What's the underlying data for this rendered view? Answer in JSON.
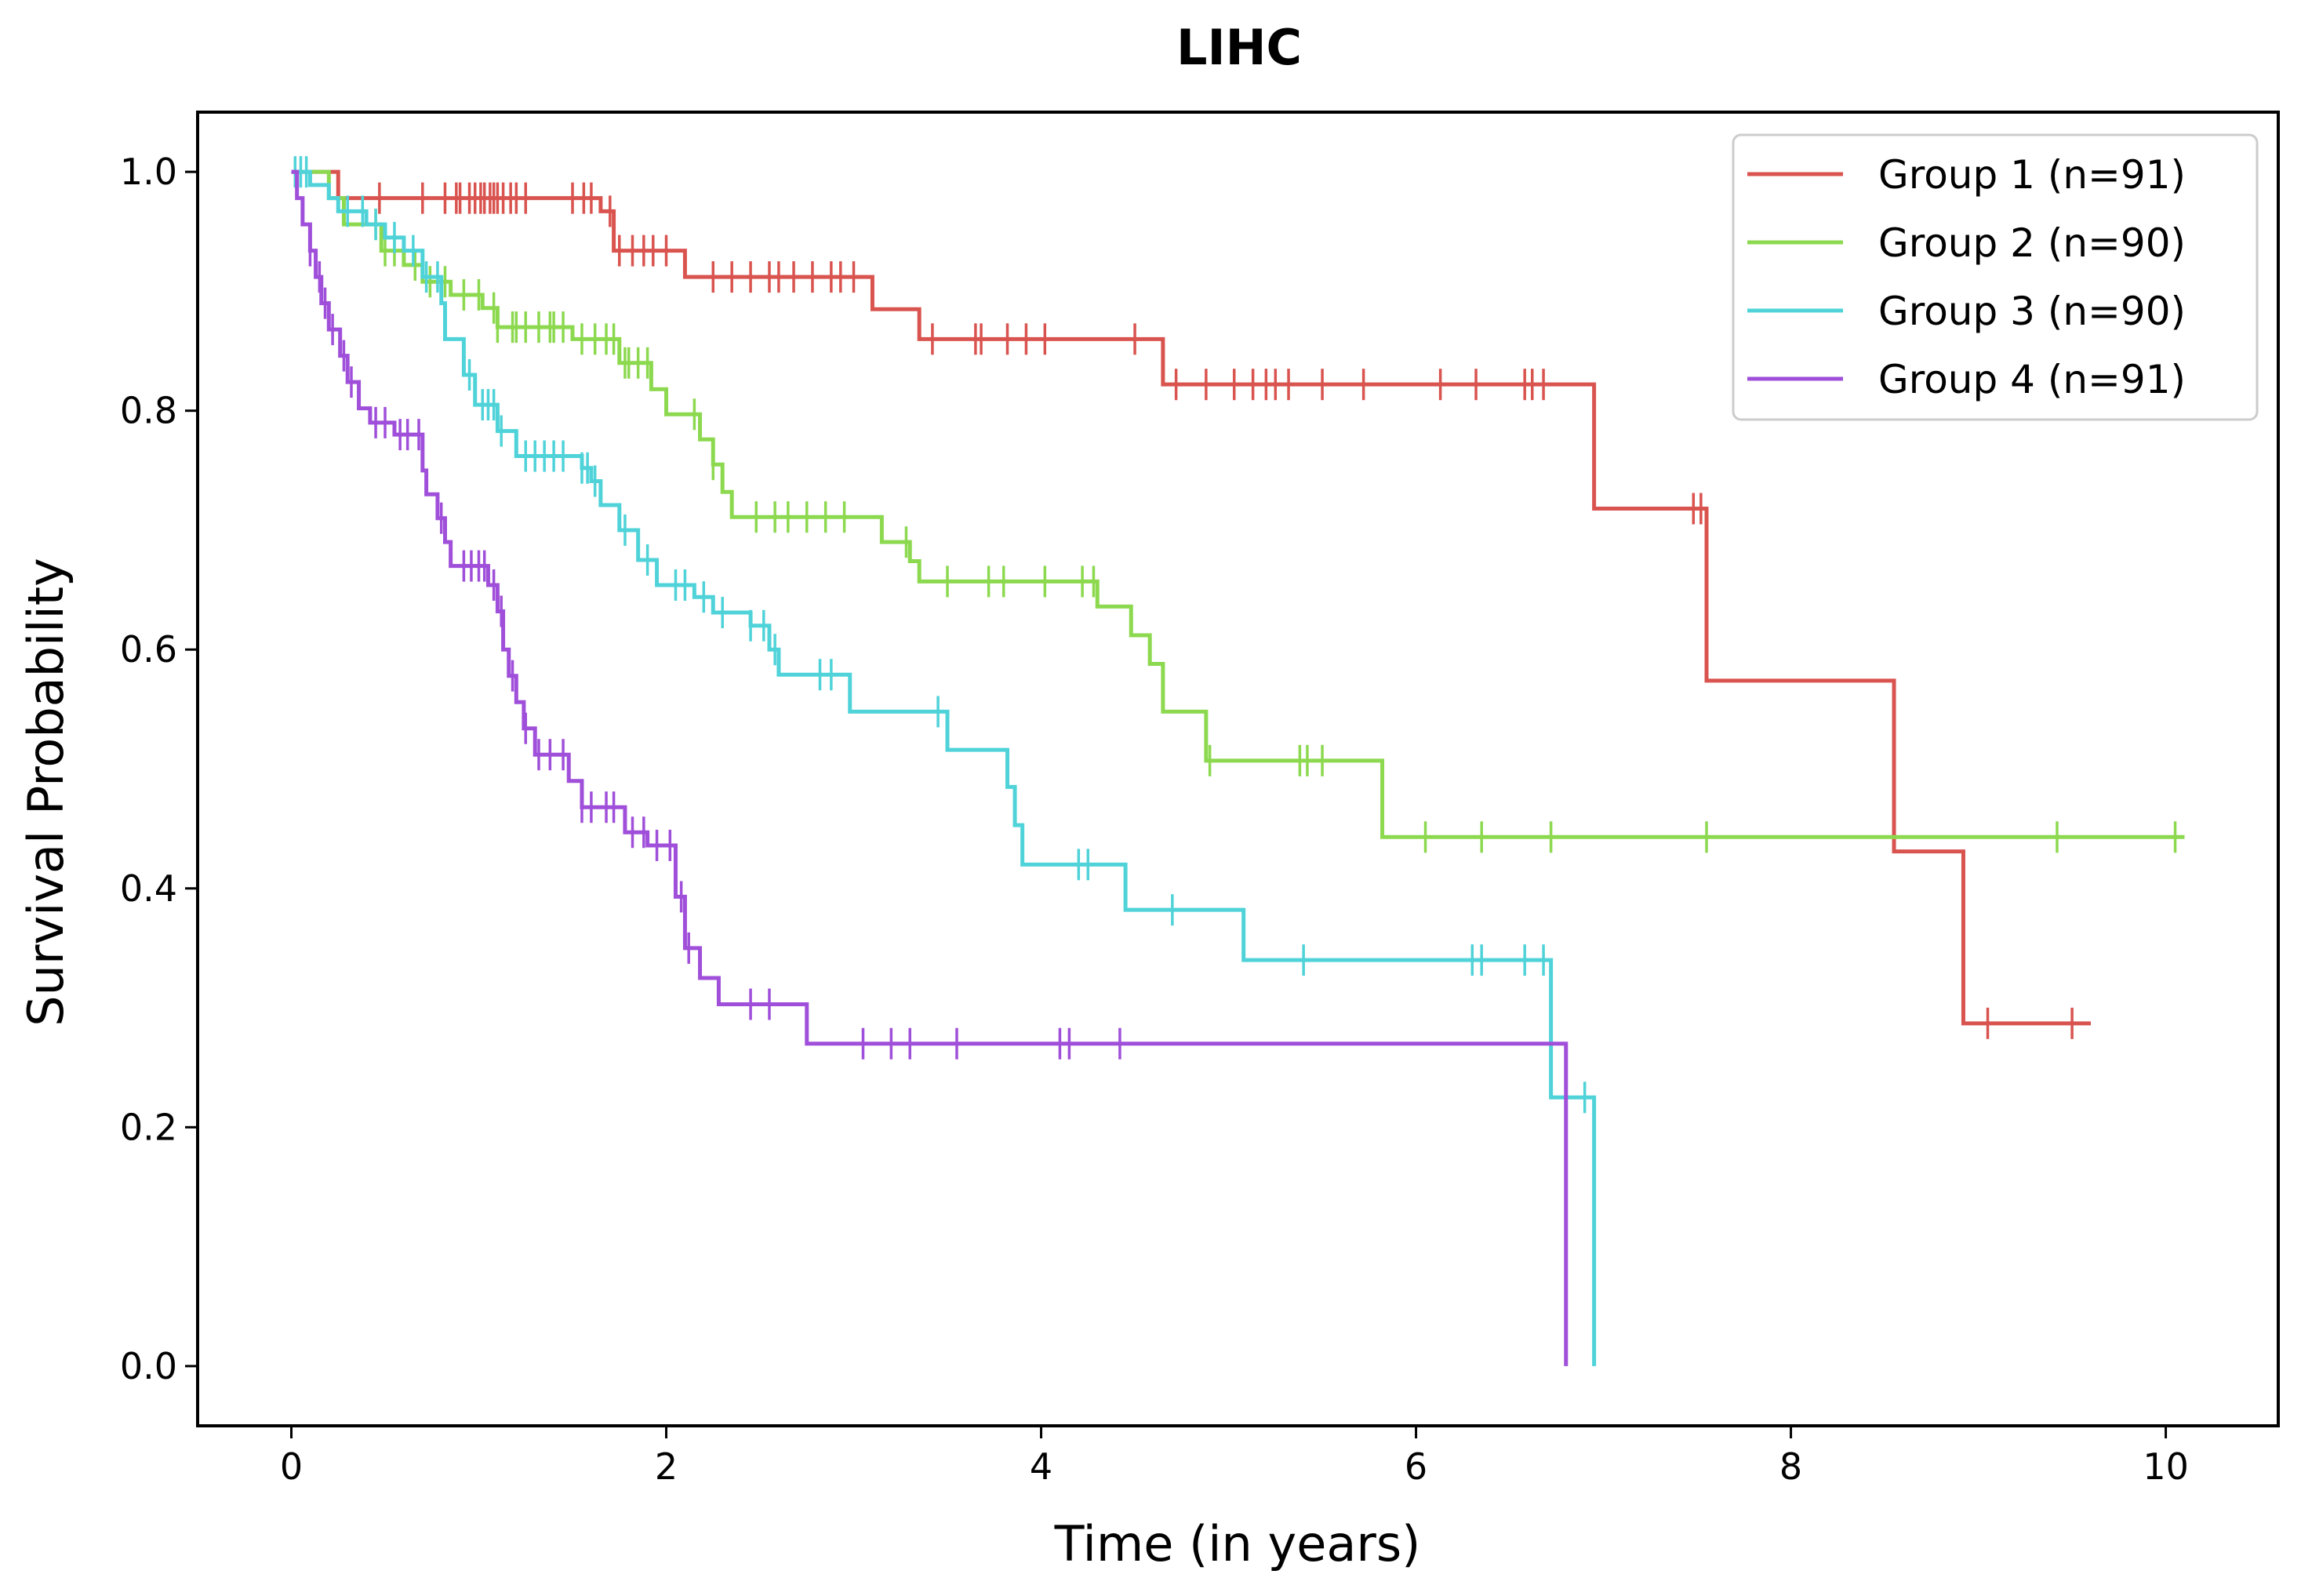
{
  "chart_data": {
    "type": "line",
    "subtype": "kaplan-meier",
    "title": "LIHC",
    "xlabel": "Time (in years)",
    "ylabel": "Survival Probability",
    "xlim": [
      -0.5,
      10.6
    ],
    "ylim": [
      -0.05,
      1.05
    ],
    "xticks": [
      0,
      2,
      4,
      6,
      8,
      10
    ],
    "yticks": [
      0.0,
      0.2,
      0.4,
      0.6,
      0.8,
      1.0
    ],
    "grid": false,
    "legend_position": "top-right",
    "series": [
      {
        "name": "Group 1 (n=91)",
        "color": "#d9534f",
        "steps": [
          [
            0,
            1.0
          ],
          [
            0.25,
            0.978
          ],
          [
            1.65,
            0.967
          ],
          [
            1.72,
            0.934
          ],
          [
            2.1,
            0.912
          ],
          [
            3.1,
            0.885
          ],
          [
            3.35,
            0.86
          ],
          [
            4.65,
            0.822
          ],
          [
            6.95,
            0.718
          ],
          [
            7.55,
            0.574
          ],
          [
            8.55,
            0.431
          ],
          [
            8.92,
            0.287
          ],
          [
            9.6,
            0.287
          ]
        ],
        "censors": [
          0.47,
          0.7,
          0.82,
          0.88,
          0.9,
          0.95,
          0.98,
          1.01,
          1.03,
          1.06,
          1.08,
          1.1,
          1.13,
          1.17,
          1.2,
          1.25,
          1.5,
          1.56,
          1.6,
          1.7,
          1.75,
          1.82,
          1.88,
          1.93,
          2.0,
          2.25,
          2.35,
          2.45,
          2.55,
          2.6,
          2.68,
          2.78,
          2.88,
          2.93,
          3.0,
          3.42,
          3.65,
          3.68,
          3.82,
          3.92,
          4.02,
          4.5,
          4.72,
          4.88,
          5.03,
          5.13,
          5.2,
          5.25,
          5.32,
          5.5,
          5.72,
          6.13,
          6.32,
          6.58,
          6.62,
          6.68,
          7.48,
          7.52,
          9.05,
          9.5
        ]
      },
      {
        "name": "Group 2 (n=90)",
        "color": "#8cd94f",
        "steps": [
          [
            0,
            1.0
          ],
          [
            0.2,
            0.978
          ],
          [
            0.28,
            0.956
          ],
          [
            0.48,
            0.934
          ],
          [
            0.6,
            0.922
          ],
          [
            0.7,
            0.908
          ],
          [
            0.85,
            0.897
          ],
          [
            1.02,
            0.886
          ],
          [
            1.1,
            0.87
          ],
          [
            1.5,
            0.86
          ],
          [
            1.75,
            0.84
          ],
          [
            1.92,
            0.818
          ],
          [
            2.0,
            0.797
          ],
          [
            2.18,
            0.776
          ],
          [
            2.25,
            0.755
          ],
          [
            2.3,
            0.732
          ],
          [
            2.35,
            0.711
          ],
          [
            3.15,
            0.69
          ],
          [
            3.3,
            0.674
          ],
          [
            3.35,
            0.657
          ],
          [
            4.3,
            0.636
          ],
          [
            4.48,
            0.612
          ],
          [
            4.58,
            0.588
          ],
          [
            4.65,
            0.548
          ],
          [
            4.88,
            0.507
          ],
          [
            5.82,
            0.443
          ],
          [
            10.1,
            0.443
          ]
        ],
        "censors": [
          0.45,
          0.5,
          0.55,
          0.66,
          0.74,
          0.82,
          0.92,
          1.0,
          1.08,
          1.1,
          1.18,
          1.2,
          1.25,
          1.32,
          1.38,
          1.4,
          1.45,
          1.55,
          1.62,
          1.68,
          1.72,
          1.78,
          1.8,
          1.85,
          1.9,
          2.15,
          2.25,
          2.48,
          2.58,
          2.65,
          2.75,
          2.85,
          2.95,
          3.28,
          3.5,
          3.72,
          3.8,
          4.02,
          4.22,
          4.28,
          4.9,
          5.38,
          5.42,
          5.5,
          6.05,
          6.35,
          6.72,
          7.55,
          9.42,
          10.05
        ]
      },
      {
        "name": "Group 3 (n=90)",
        "color": "#4fd3d9",
        "steps": [
          [
            0,
            1.0
          ],
          [
            0.1,
            0.989
          ],
          [
            0.2,
            0.978
          ],
          [
            0.25,
            0.967
          ],
          [
            0.4,
            0.956
          ],
          [
            0.5,
            0.945
          ],
          [
            0.6,
            0.934
          ],
          [
            0.7,
            0.912
          ],
          [
            0.8,
            0.89
          ],
          [
            0.82,
            0.86
          ],
          [
            0.92,
            0.83
          ],
          [
            0.98,
            0.805
          ],
          [
            1.1,
            0.783
          ],
          [
            1.2,
            0.762
          ],
          [
            1.55,
            0.752
          ],
          [
            1.6,
            0.741
          ],
          [
            1.65,
            0.721
          ],
          [
            1.75,
            0.7
          ],
          [
            1.85,
            0.675
          ],
          [
            1.95,
            0.654
          ],
          [
            2.15,
            0.644
          ],
          [
            2.25,
            0.631
          ],
          [
            2.45,
            0.62
          ],
          [
            2.55,
            0.6
          ],
          [
            2.6,
            0.579
          ],
          [
            2.98,
            0.548
          ],
          [
            3.5,
            0.516
          ],
          [
            3.82,
            0.485
          ],
          [
            3.86,
            0.453
          ],
          [
            3.9,
            0.42
          ],
          [
            4.45,
            0.382
          ],
          [
            5.08,
            0.34
          ],
          [
            6.72,
            0.225
          ],
          [
            6.95,
            0.0
          ]
        ],
        "censors": [
          0.02,
          0.05,
          0.08,
          0.3,
          0.38,
          0.45,
          0.55,
          0.65,
          0.72,
          0.78,
          0.95,
          1.02,
          1.05,
          1.08,
          1.12,
          1.25,
          1.3,
          1.35,
          1.4,
          1.45,
          1.55,
          1.58,
          1.62,
          1.78,
          1.9,
          2.05,
          2.1,
          2.2,
          2.3,
          2.45,
          2.52,
          2.58,
          2.82,
          2.88,
          3.45,
          4.2,
          4.25,
          4.7,
          5.4,
          6.3,
          6.35,
          6.58,
          6.68,
          6.9
        ]
      },
      {
        "name": "Group 4 (n=91)",
        "color": "#9f4fd9",
        "steps": [
          [
            0,
            1.0
          ],
          [
            0.03,
            0.978
          ],
          [
            0.06,
            0.956
          ],
          [
            0.1,
            0.934
          ],
          [
            0.13,
            0.912
          ],
          [
            0.16,
            0.89
          ],
          [
            0.2,
            0.868
          ],
          [
            0.26,
            0.846
          ],
          [
            0.3,
            0.824
          ],
          [
            0.36,
            0.802
          ],
          [
            0.42,
            0.79
          ],
          [
            0.55,
            0.78
          ],
          [
            0.7,
            0.75
          ],
          [
            0.72,
            0.73
          ],
          [
            0.78,
            0.71
          ],
          [
            0.82,
            0.69
          ],
          [
            0.85,
            0.67
          ],
          [
            1.05,
            0.654
          ],
          [
            1.1,
            0.632
          ],
          [
            1.13,
            0.6
          ],
          [
            1.16,
            0.578
          ],
          [
            1.2,
            0.556
          ],
          [
            1.24,
            0.534
          ],
          [
            1.3,
            0.512
          ],
          [
            1.48,
            0.49
          ],
          [
            1.55,
            0.468
          ],
          [
            1.78,
            0.447
          ],
          [
            1.9,
            0.436
          ],
          [
            2.05,
            0.393
          ],
          [
            2.1,
            0.35
          ],
          [
            2.18,
            0.325
          ],
          [
            2.28,
            0.303
          ],
          [
            2.75,
            0.27
          ],
          [
            6.8,
            0.0
          ]
        ],
        "censors": [
          0.1,
          0.15,
          0.18,
          0.22,
          0.28,
          0.32,
          0.45,
          0.5,
          0.58,
          0.62,
          0.68,
          0.8,
          0.92,
          0.96,
          1.0,
          1.03,
          1.08,
          1.12,
          1.18,
          1.25,
          1.32,
          1.38,
          1.45,
          1.55,
          1.6,
          1.68,
          1.72,
          1.82,
          1.88,
          1.95,
          2.02,
          2.08,
          2.12,
          2.45,
          2.55,
          3.05,
          3.2,
          3.3,
          3.55,
          4.1,
          4.15,
          4.42
        ]
      }
    ]
  }
}
